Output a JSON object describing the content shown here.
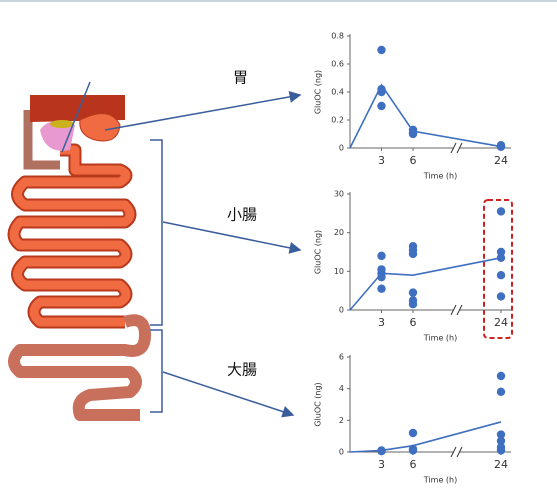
{
  "organs": [
    "胃",
    "小腸",
    "大腸"
  ],
  "chart_data": [
    {
      "type": "scatter",
      "ylabel": "GluOC (ng)",
      "xlabel": "Time (h)",
      "xlim": [
        0,
        24
      ],
      "xticks": [
        3,
        6,
        24
      ],
      "ylim": [
        0,
        0.8
      ],
      "yticks": [
        0,
        0.2,
        0.4,
        0.6,
        0.8
      ],
      "points": {
        "color": "#3f6fc0",
        "x": [
          3,
          3,
          3,
          3,
          6,
          6,
          6,
          24,
          24,
          24,
          24
        ],
        "values": [
          0.7,
          0.42,
          0.4,
          0.3,
          0.13,
          0.11,
          0.1,
          0.01,
          0.01,
          0.01,
          0.02
        ]
      },
      "mean": {
        "color": "#3f6fc0",
        "x": [
          0,
          3,
          6,
          24
        ],
        "values": [
          0,
          0.45,
          0.12,
          0.01
        ]
      }
    },
    {
      "type": "scatter",
      "ylabel": "GluOC (ng)",
      "xlabel": "Time (h)",
      "xlim": [
        0,
        24
      ],
      "xticks": [
        3,
        6,
        24
      ],
      "ylim": [
        0,
        30
      ],
      "yticks": [
        0,
        10,
        20,
        30
      ],
      "points": {
        "color": "#3f6fc0",
        "x": [
          3,
          3,
          3,
          3,
          3,
          6,
          6,
          6,
          6,
          6,
          6,
          24,
          24,
          24,
          24,
          24
        ],
        "values": [
          14,
          10.5,
          9.5,
          8.5,
          5.5,
          16.5,
          15.5,
          14.5,
          4.5,
          2.5,
          1.5,
          25.5,
          15,
          13.5,
          9,
          3.5
        ]
      },
      "mean": {
        "color": "#3f6fc0",
        "x": [
          0,
          3,
          6,
          24
        ],
        "values": [
          0,
          9.5,
          9,
          13.5
        ]
      }
    },
    {
      "type": "scatter",
      "ylabel": "GluOC (ng)",
      "xlabel": "Time (h)",
      "xlim": [
        0,
        24
      ],
      "xticks": [
        3,
        6,
        24
      ],
      "ylim": [
        0,
        6
      ],
      "yticks": [
        0,
        2,
        4,
        6
      ],
      "points": {
        "color": "#3f6fc0",
        "x": [
          3,
          3,
          6,
          6,
          6,
          24,
          24,
          24,
          24,
          24,
          24
        ],
        "values": [
          0.1,
          0.05,
          1.2,
          0.2,
          0.1,
          4.8,
          3.8,
          1.1,
          0.7,
          0.3,
          0.1
        ]
      },
      "mean": {
        "color": "#3f6fc0",
        "x": [
          0,
          3,
          6,
          24
        ],
        "values": [
          0,
          0.1,
          0.4,
          1.9
        ]
      }
    }
  ]
}
